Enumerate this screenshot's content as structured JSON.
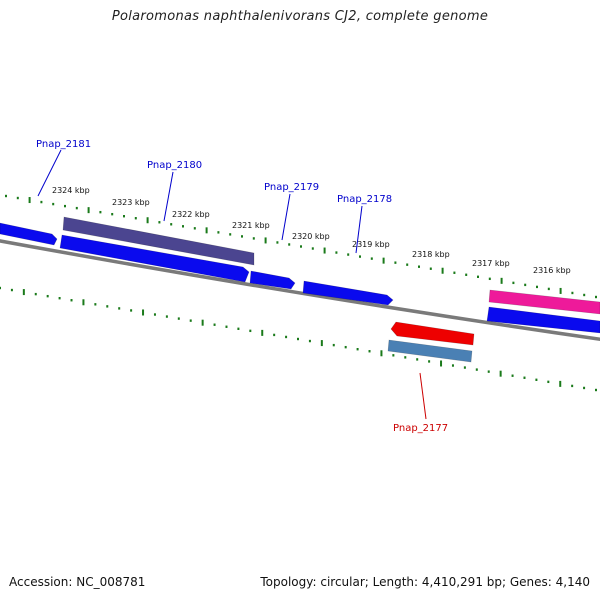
{
  "title": "Polaromonas naphthalenivorans CJ2, complete genome",
  "footer": {
    "accession": "Accession: NC_008781",
    "summary": "Topology: circular; Length: 4,410,291 bp; Genes: 4,140"
  },
  "colors": {
    "backbone": "#7a7a7a",
    "tick": "#1a7a1a",
    "gene_label_forward": "#0000cc",
    "gene_label_reverse": "#cc0000"
  },
  "kbp_labels": [
    "2324 kbp",
    "2323 kbp",
    "2322 kbp",
    "2321 kbp",
    "2320 kbp",
    "2319 kbp",
    "2318 kbp",
    "2317 kbp",
    "2316 kbp"
  ],
  "gene_labels": [
    {
      "name": "Pnap_2181",
      "strand": "forward"
    },
    {
      "name": "Pnap_2180",
      "strand": "forward"
    },
    {
      "name": "Pnap_2179",
      "strand": "forward"
    },
    {
      "name": "Pnap_2178",
      "strand": "forward"
    },
    {
      "name": "Pnap_2177",
      "strand": "reverse"
    }
  ],
  "features": [
    {
      "name": "gene-arrow-1",
      "color": "#0a0aee"
    },
    {
      "name": "gene-arrow-2",
      "color": "#0a0aee"
    },
    {
      "name": "gene-arrow-3",
      "color": "#0a0aee"
    },
    {
      "name": "gene-arrow-4",
      "color": "#0a0aee"
    },
    {
      "name": "gene-arrow-5",
      "color": "#0a0aee"
    },
    {
      "name": "cds-bar-1",
      "color": "#4b4590"
    },
    {
      "name": "cds-bar-2",
      "color": "#ee1a9a"
    },
    {
      "name": "gene-arrow-reverse",
      "color": "#ee0000"
    },
    {
      "name": "cds-bar-reverse",
      "color": "#4a80b4"
    }
  ]
}
